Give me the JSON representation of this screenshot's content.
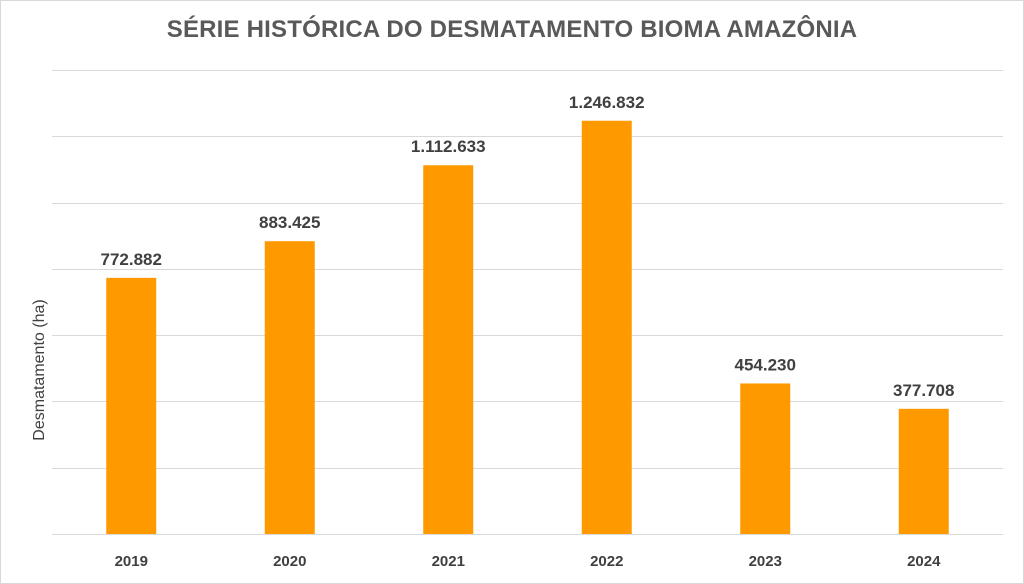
{
  "chart_data": {
    "type": "bar",
    "title": "SÉRIE HISTÓRICA DO DESMATAMENTO  BIOMA AMAZÔNIA",
    "xlabel": "",
    "ylabel": "Desmatamento (ha)",
    "categories": [
      "2019",
      "2020",
      "2021",
      "2022",
      "2023",
      "2024"
    ],
    "values": [
      772882,
      883425,
      1112633,
      1246832,
      454230,
      377708
    ],
    "value_labels": [
      "772.882",
      "883.425",
      "1.112.633",
      "1.246.832",
      "454.230",
      "377.708"
    ],
    "ylim": [
      0,
      1400000
    ],
    "ytick_step": 200000,
    "grid": true,
    "legend": "none",
    "colors": {
      "bar": "#FF9900",
      "grid": "#d9d9d9",
      "text": "#404040",
      "title": "#595959"
    }
  }
}
